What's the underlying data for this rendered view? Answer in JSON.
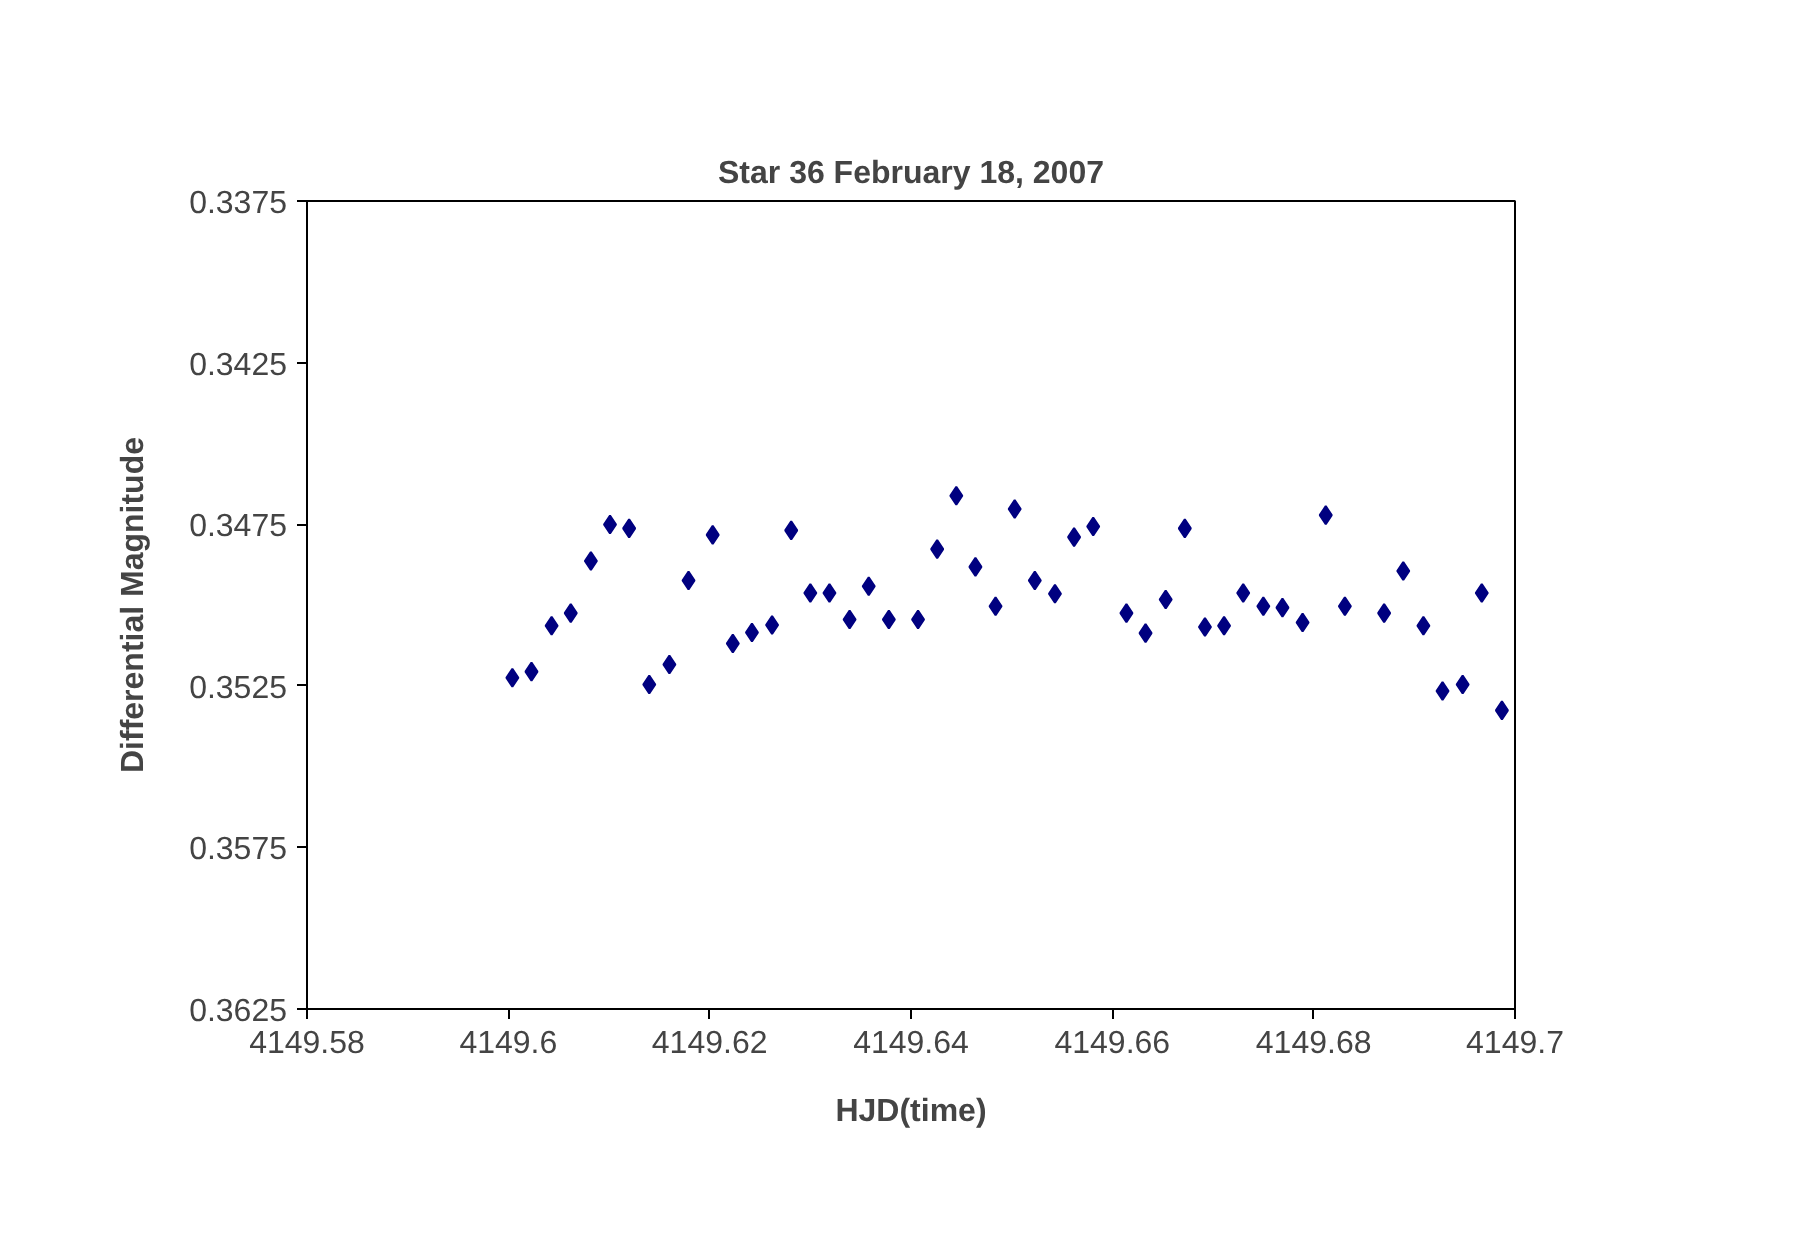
{
  "chart_data": {
    "type": "scatter",
    "title": "Star 36 February 18, 2007",
    "xlabel": "HJD(time)",
    "ylabel": "Differential Magnitude",
    "x": [
      4149.6004,
      4149.6023,
      4149.6043,
      4149.6062,
      4149.6082,
      4149.6101,
      4149.612,
      4149.614,
      4149.616,
      4149.6179,
      4149.6203,
      4149.6223,
      4149.6242,
      4149.6262,
      4149.6281,
      4149.63,
      4149.6319,
      4149.6339,
      4149.6358,
      4149.6378,
      4149.6407,
      4149.6426,
      4149.6445,
      4149.6464,
      4149.6484,
      4149.6503,
      4149.6523,
      4149.6543,
      4149.6562,
      4149.6581,
      4149.6614,
      4149.6633,
      4149.6653,
      4149.6672,
      4149.6692,
      4149.6711,
      4149.673,
      4149.675,
      4149.6769,
      4149.6789,
      4149.6812,
      4149.6831,
      4149.687,
      4149.6889,
      4149.6909,
      4149.6928,
      4149.6948,
      4149.6967,
      4149.6987
    ],
    "series": [
      {
        "color": "#000080",
        "values": [
          0.35225,
          0.35206,
          0.35064,
          0.35025,
          0.34864,
          0.34751,
          0.34763,
          0.35246,
          0.35184,
          0.34924,
          0.34783,
          0.35119,
          0.35085,
          0.35062,
          0.34769,
          0.34963,
          0.34963,
          0.35045,
          0.34942,
          0.35045,
          0.35045,
          0.34827,
          0.34662,
          0.34882,
          0.35004,
          0.34703,
          0.34924,
          0.34965,
          0.3479,
          0.34757,
          0.35025,
          0.35087,
          0.34983,
          0.34763,
          0.35068,
          0.35064,
          0.34963,
          0.35004,
          0.35008,
          0.35054,
          0.34722,
          0.35004,
          0.35025,
          0.34895,
          0.35064,
          0.35266,
          0.35246,
          0.34963,
          0.35326
        ]
      }
    ],
    "xlim": [
      4149.58,
      4149.7
    ],
    "xticks": [
      4149.58,
      4149.6,
      4149.62,
      4149.64,
      4149.66,
      4149.68,
      4149.7
    ],
    "ylim": [
      0.3625,
      0.3375
    ],
    "yticks": [
      0.3375,
      0.3425,
      0.3475,
      0.3525,
      0.3575,
      0.3625
    ],
    "marker": "diamond",
    "grid": false
  }
}
